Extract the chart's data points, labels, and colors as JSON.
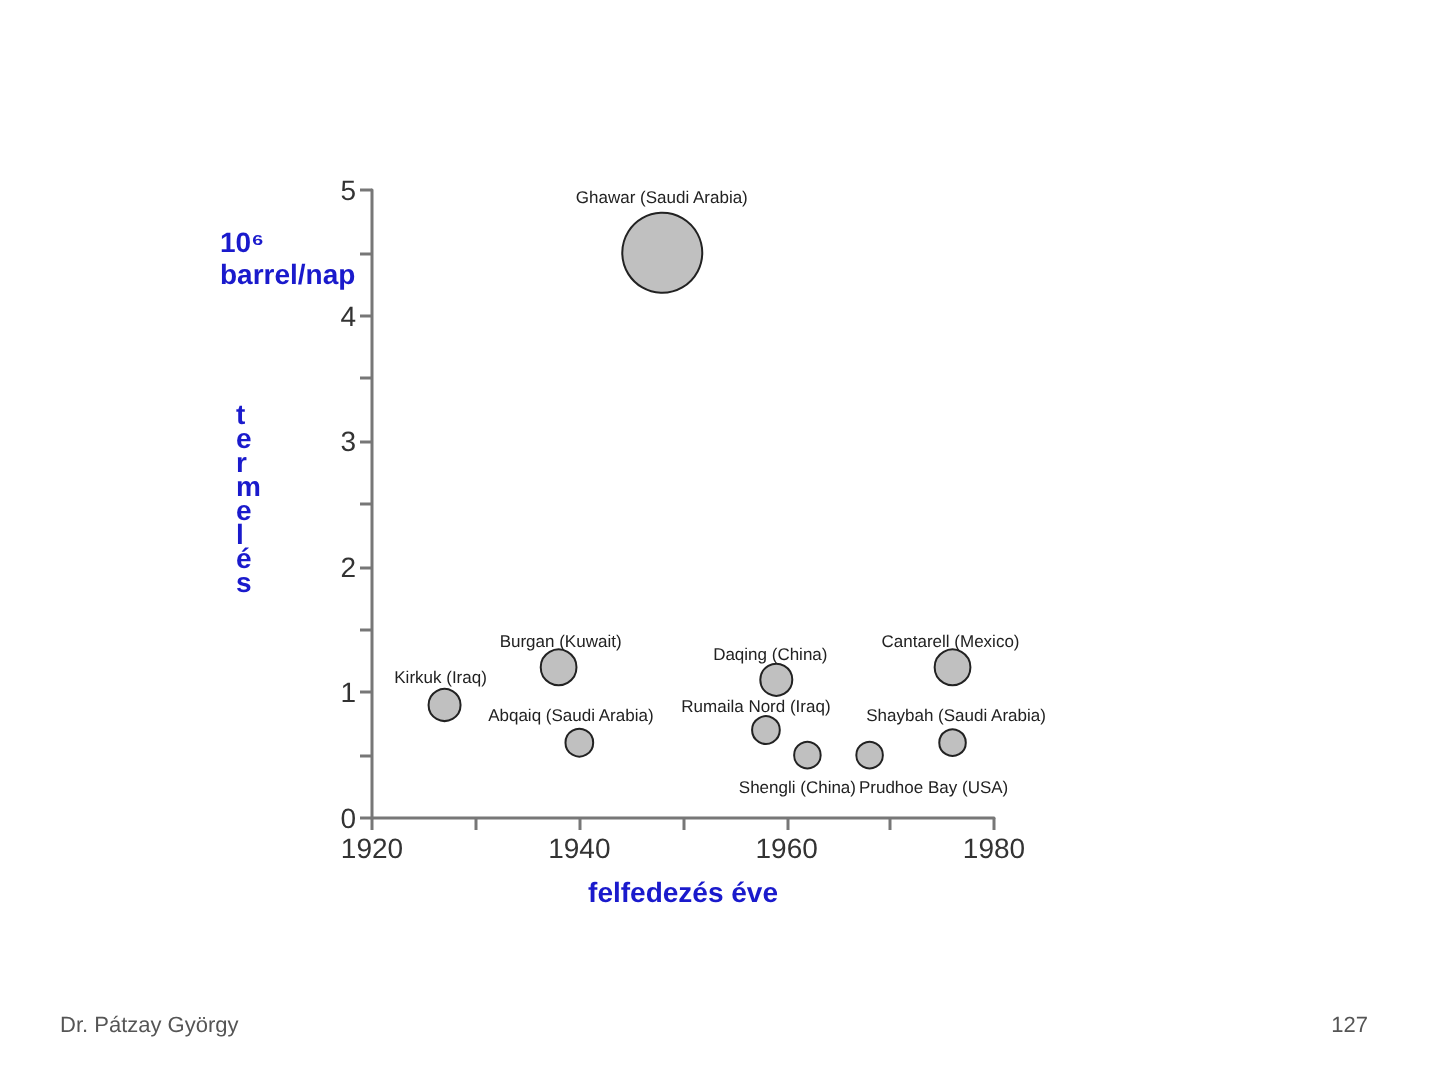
{
  "chart_data": {
    "type": "bubble",
    "xlabel": "felfedezés éve",
    "ylabel": "termelés",
    "x": [
      1948,
      1927,
      1938,
      1940,
      1959,
      1958,
      1962,
      1968,
      1976,
      1976
    ],
    "series": [
      {
        "color": "#c0c0c0",
        "values": [
          4.5,
          0.9,
          1.2,
          0.6,
          1.1,
          0.7,
          0.5,
          0.5,
          0.6,
          1.2
        ],
        "sizes": [
          1,
          0.16,
          0.2,
          0.12,
          0.16,
          0.12,
          0.11,
          0.11,
          0.11,
          0.2
        ],
        "value_labels": [
          "Ghawar (Saudi Arabia)",
          "Kirkuk (Iraq)",
          "Burgan (Kuwait)",
          "Abqaiq (Saudi Arabia)",
          "Daqing (China)",
          "Rumaila Nord (Iraq)",
          "Shengli (China)",
          "Prudhoe Bay (USA)",
          "Shaybah (Saudi Arabia)",
          "Cantarell (Mexico)"
        ]
      }
    ],
    "xlim": [
      1920,
      1980
    ],
    "xticks": [
      1920,
      {
        "value": 1930,
        "label": null
      },
      1940,
      {
        "value": 1950,
        "label": null
      },
      1960,
      {
        "value": 1970,
        "label": null
      },
      1980
    ],
    "ylim": [
      0,
      5
    ],
    "yticks": [
      0,
      {
        "value": 0.5,
        "label": null
      },
      1,
      {
        "value": 1.5,
        "label": null
      },
      2,
      {
        "value": 2.5,
        "label": null
      },
      3,
      {
        "value": 3.5,
        "label": null
      },
      4,
      {
        "value": 4.5,
        "label": null
      },
      5
    ],
    "grid": false,
    "marker": "circle",
    "annotations": [
      "10⁶\nbarrel/nap",
      "Dr. Pátzay György",
      "127"
    ]
  }
}
